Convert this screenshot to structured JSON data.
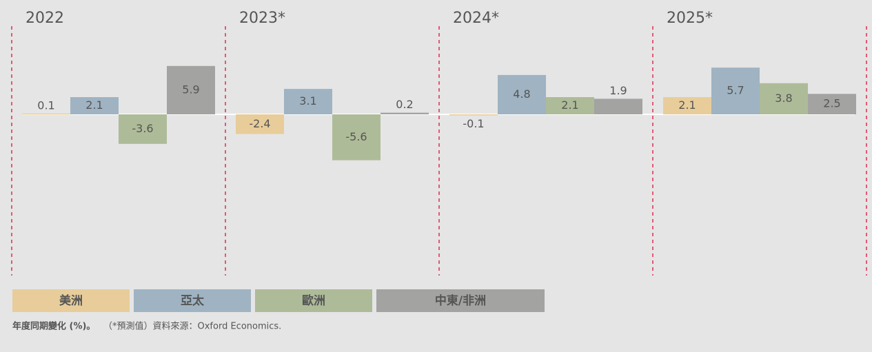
{
  "chart_data": {
    "type": "bar",
    "categories": [
      "2022",
      "2023*",
      "2024*",
      "2025*"
    ],
    "series": [
      {
        "name": "美洲",
        "color": "#e8cd9a",
        "values": [
          0.1,
          -2.4,
          -0.1,
          2.1
        ]
      },
      {
        "name": "亞太",
        "color": "#9fb3c2",
        "values": [
          2.1,
          3.1,
          4.8,
          5.7
        ]
      },
      {
        "name": "歐洲",
        "color": "#aebb98",
        "values": [
          -3.6,
          -5.6,
          2.1,
          3.8
        ]
      },
      {
        "name": "中東/非洲",
        "color": "#a3a3a2",
        "values": [
          5.9,
          0.2,
          1.9,
          2.5
        ]
      }
    ],
    "note_bold": "年度同期變化 (%)。",
    "note": "（*預測值）資料來源：Oxford Economics."
  }
}
